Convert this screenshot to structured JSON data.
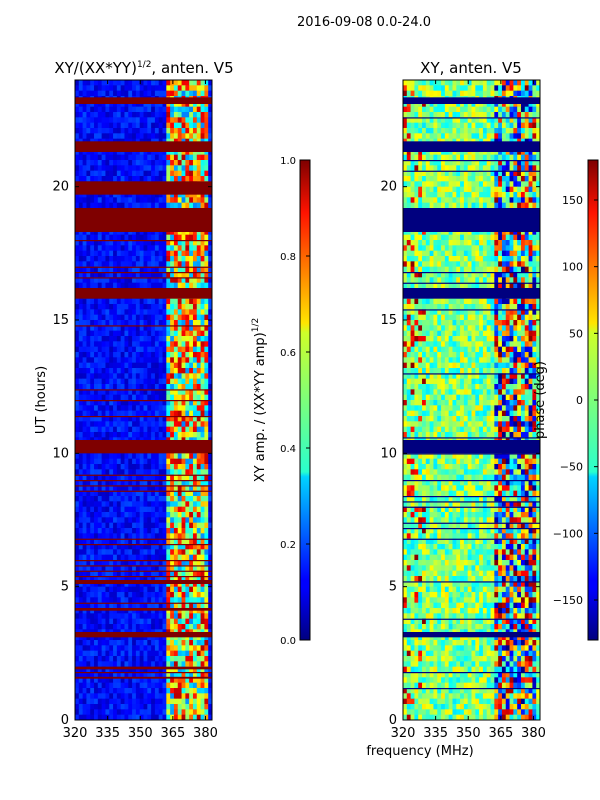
{
  "figure_title": "2016-09-08 0.0-24.0",
  "shared_xlabel": "frequency (MHz)",
  "chart_data": [
    {
      "type": "heatmap",
      "title_main": "XY/(XX*YY)",
      "title_exp": "1/2",
      "title_tail": ", anten. V5",
      "xlabel": "",
      "ylabel": "UT (hours)",
      "xlim": [
        320,
        383
      ],
      "ylim": [
        0,
        24
      ],
      "xticks": [
        320,
        335,
        350,
        365,
        380
      ],
      "yticks": [
        0,
        5,
        10,
        15,
        20
      ],
      "colorbar": {
        "label_main": "XY amp. / (XX*YY amp)",
        "label_exp": "1/2",
        "range": [
          0.0,
          1.0
        ],
        "ticks": [
          "0.0",
          "0.2",
          "0.4",
          "0.6",
          "0.8",
          "1.0"
        ],
        "colormap": "jet"
      },
      "flagged_bands_hours": [
        [
          23.1,
          23.35
        ],
        [
          21.3,
          21.7
        ],
        [
          19.7,
          20.2
        ],
        [
          18.3,
          19.2
        ],
        [
          15.8,
          16.2
        ],
        [
          10.0,
          10.5
        ],
        [
          3.1,
          3.3
        ],
        [
          4.1,
          4.2
        ],
        [
          5.1,
          5.25
        ],
        [
          1.9,
          2.0
        ],
        [
          1.55,
          1.62
        ]
      ],
      "feature_note": "low amplitude (~0.1) across band, higher amplitude (0.5-1.0) between 362 and 380 MHz"
    },
    {
      "type": "heatmap",
      "title_main": "XY, anten. V5",
      "xlabel": "",
      "ylabel": "",
      "xlim": [
        320,
        383
      ],
      "ylim": [
        0,
        24
      ],
      "xticks": [
        320,
        335,
        350,
        365,
        380
      ],
      "yticks": [
        0,
        5,
        10,
        15,
        20
      ],
      "colorbar": {
        "label": "phase (deg)",
        "range": [
          -180,
          180
        ],
        "ticks": [
          "150",
          "100",
          "50",
          "0",
          "−50",
          "−100",
          "−150"
        ],
        "colormap": "jet"
      },
      "flagged_bands_hours": [
        [
          18.3,
          19.2
        ],
        [
          15.8,
          16.2
        ],
        [
          10.0,
          10.5
        ],
        [
          3.1,
          3.3
        ],
        [
          23.1,
          23.35
        ],
        [
          21.3,
          21.7
        ]
      ],
      "feature_note": "phase near 0 deg across band, strong phase wrapping between 362 and 380 MHz"
    }
  ]
}
